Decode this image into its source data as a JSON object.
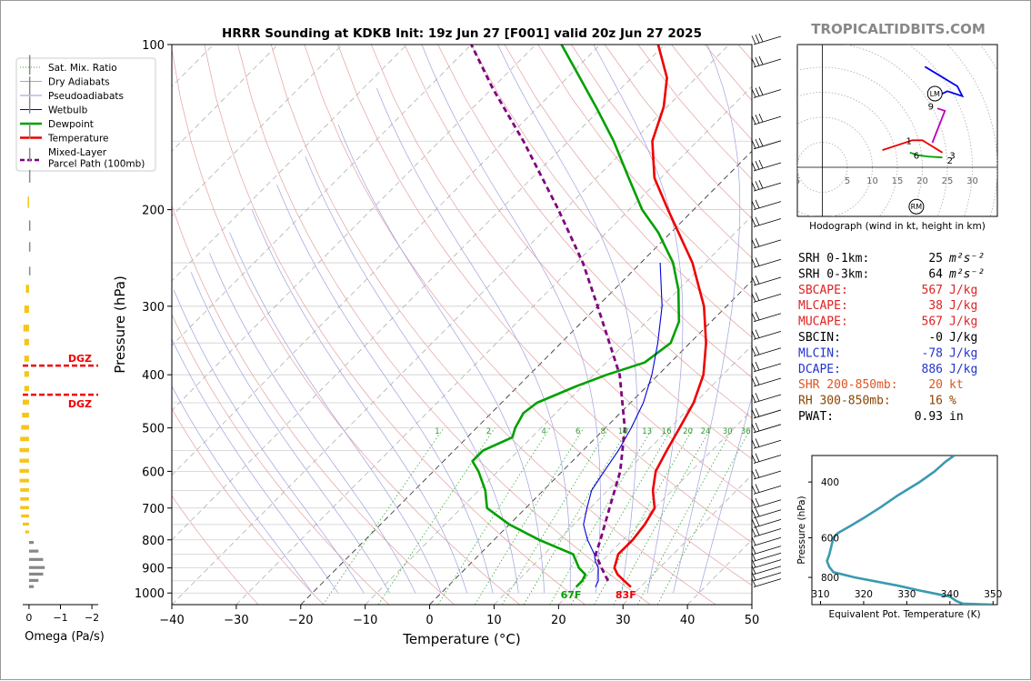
{
  "page": {
    "title": "HRRR Sounding at KDKB Init: 19z Jun 27 [F001] valid 20z Jun 27 2025",
    "watermark": "TROPICALTIDBITS.COM"
  },
  "chart_data": [
    {
      "name": "skewt",
      "type": "line",
      "xlabel": "Temperature (°C)",
      "ylabel": "Pressure (hPa)",
      "xlim": [
        -40,
        50
      ],
      "ylim": [
        1050,
        100
      ],
      "y_scale": "log",
      "xticks": [
        -40,
        -30,
        -20,
        -10,
        0,
        10,
        20,
        30,
        40,
        50
      ],
      "xtick_labels": [
        "−40",
        "−30",
        "−20",
        "−10",
        "0",
        "10",
        "20",
        "30",
        "40",
        "50"
      ],
      "yticks": [
        100,
        200,
        300,
        400,
        500,
        600,
        700,
        800,
        900,
        1000
      ],
      "grid": true,
      "legend": {
        "position": "top-left",
        "entries": [
          {
            "label": "Sat. Mix. Ratio",
            "color": "#33aa33",
            "style": "dotted"
          },
          {
            "label": "Dry Adiabats",
            "color": "#e09090",
            "style": "solid"
          },
          {
            "label": "Pseudoadiabats",
            "color": "#9090d8",
            "style": "solid"
          },
          {
            "label": "Wetbulb",
            "color": "#0000dd",
            "style": "solid"
          },
          {
            "label": "Dewpoint",
            "color": "#00a000",
            "style": "solid"
          },
          {
            "label": "Temperature",
            "color": "#ee0000",
            "style": "solid"
          },
          {
            "label": "Mixed-Layer\nParcel Path (100mb)",
            "color": "#800080",
            "style": "dashed"
          }
        ]
      },
      "mixing_ratio_labels": [
        "1",
        "2",
        "4",
        "6",
        "8",
        "10",
        "13",
        "16",
        "20",
        "24",
        "30",
        "36"
      ],
      "mixing_ratio_values": [
        1,
        2,
        4,
        6,
        8,
        10,
        13,
        16,
        20,
        24,
        30,
        36
      ],
      "surface_temp_label": "83F",
      "surface_dewpoint_label": "67F",
      "series": [
        {
          "name": "Temperature",
          "color": "#ee0000",
          "points": [
            [
              975,
              28.5
            ],
            [
              950,
              26.5
            ],
            [
              925,
              24.5
            ],
            [
              900,
              23
            ],
            [
              850,
              21.5
            ],
            [
              800,
              21.5
            ],
            [
              750,
              21
            ],
            [
              700,
              20
            ],
            [
              650,
              17
            ],
            [
              600,
              14.5
            ],
            [
              550,
              13
            ],
            [
              500,
              11.5
            ],
            [
              450,
              9.8
            ],
            [
              400,
              7
            ],
            [
              350,
              2.5
            ],
            [
              300,
              -3.5
            ],
            [
              250,
              -12
            ],
            [
              200,
              -24
            ],
            [
              175,
              -31
            ],
            [
              150,
              -37
            ],
            [
              130,
              -40.5
            ],
            [
              115,
              -44.5
            ],
            [
              100,
              -51
            ]
          ]
        },
        {
          "name": "Dewpoint",
          "color": "#00a000",
          "points": [
            [
              975,
              20
            ],
            [
              950,
              20
            ],
            [
              925,
              19.5
            ],
            [
              900,
              17.5
            ],
            [
              850,
              14.5
            ],
            [
              800,
              7
            ],
            [
              750,
              0
            ],
            [
              700,
              -6
            ],
            [
              650,
              -9
            ],
            [
              600,
              -13
            ],
            [
              575,
              -15.5
            ],
            [
              550,
              -15.5
            ],
            [
              520,
              -13
            ],
            [
              500,
              -14
            ],
            [
              470,
              -15
            ],
            [
              450,
              -14.5
            ],
            [
              420,
              -11
            ],
            [
              400,
              -8
            ],
            [
              380,
              -4
            ],
            [
              350,
              -3
            ],
            [
              320,
              -5
            ],
            [
              280,
              -10
            ],
            [
              250,
              -15
            ],
            [
              220,
              -22
            ],
            [
              200,
              -28
            ],
            [
              175,
              -35
            ],
            [
              150,
              -43
            ],
            [
              130,
              -51
            ],
            [
              115,
              -58
            ],
            [
              100,
              -66
            ]
          ]
        },
        {
          "name": "Wetbulb",
          "color": "#0000dd",
          "points": [
            [
              975,
              23
            ],
            [
              950,
              22.5
            ],
            [
              925,
              21.5
            ],
            [
              900,
              20.5
            ],
            [
              875,
              19
            ],
            [
              850,
              17.8
            ],
            [
              800,
              14.5
            ],
            [
              750,
              11.5
            ],
            [
              700,
              9.5
            ],
            [
              650,
              7.5
            ],
            [
              600,
              6.5
            ],
            [
              550,
              5.5
            ],
            [
              500,
              4
            ],
            [
              450,
              2
            ],
            [
              400,
              -1
            ],
            [
              350,
              -5
            ],
            [
              300,
              -10
            ],
            [
              250,
              -17
            ]
          ]
        },
        {
          "name": "Mixed-Layer Parcel Path (100mb)",
          "color": "#800080",
          "points": [
            [
              950,
              24
            ],
            [
              900,
              21
            ],
            [
              850,
              18
            ],
            [
              800,
              16.5
            ],
            [
              700,
              13
            ],
            [
              600,
              9
            ],
            [
              500,
              3
            ],
            [
              400,
              -6
            ],
            [
              300,
              -20
            ],
            [
              250,
              -29
            ],
            [
              200,
              -41
            ],
            [
              150,
              -57
            ],
            [
              120,
              -70
            ],
            [
              100,
              -80
            ]
          ]
        }
      ],
      "dgz_levels": [
        385,
        435
      ],
      "dgz_label": "DGZ"
    },
    {
      "name": "omega",
      "type": "bar",
      "xlabel": "Omega (Pa/s)",
      "xlim": [
        0.2,
        -2.2
      ],
      "xticks": [
        0,
        -1,
        -2
      ],
      "xtick_labels": [
        "0",
        "−1",
        "−2"
      ],
      "bars": [
        {
          "p": 110,
          "v": 0.0
        },
        {
          "p": 120,
          "v": 0.0
        },
        {
          "p": 130,
          "v": 0.0
        },
        {
          "p": 145,
          "v": 0.0
        },
        {
          "p": 160,
          "v": 0.0
        },
        {
          "p": 175,
          "v": 0.0
        },
        {
          "p": 195,
          "v": 0.02
        },
        {
          "p": 215,
          "v": 0.0
        },
        {
          "p": 235,
          "v": 0.0
        },
        {
          "p": 260,
          "v": 0.0
        },
        {
          "p": 280,
          "v": 0.1
        },
        {
          "p": 305,
          "v": 0.15
        },
        {
          "p": 330,
          "v": 0.18
        },
        {
          "p": 350,
          "v": 0.15
        },
        {
          "p": 375,
          "v": 0.15
        },
        {
          "p": 400,
          "v": 0.15
        },
        {
          "p": 425,
          "v": 0.15
        },
        {
          "p": 450,
          "v": 0.2
        },
        {
          "p": 475,
          "v": 0.22
        },
        {
          "p": 500,
          "v": 0.25
        },
        {
          "p": 525,
          "v": 0.28
        },
        {
          "p": 550,
          "v": 0.3
        },
        {
          "p": 575,
          "v": 0.3
        },
        {
          "p": 600,
          "v": 0.3
        },
        {
          "p": 625,
          "v": 0.3
        },
        {
          "p": 650,
          "v": 0.28
        },
        {
          "p": 675,
          "v": 0.28
        },
        {
          "p": 700,
          "v": 0.28
        },
        {
          "p": 725,
          "v": 0.25
        },
        {
          "p": 750,
          "v": 0.2
        },
        {
          "p": 775,
          "v": 0.12
        },
        {
          "p": 810,
          "v": -0.15
        },
        {
          "p": 840,
          "v": -0.3
        },
        {
          "p": 870,
          "v": -0.45
        },
        {
          "p": 900,
          "v": -0.5
        },
        {
          "p": 925,
          "v": -0.45
        },
        {
          "p": 950,
          "v": -0.3
        },
        {
          "p": 975,
          "v": -0.15
        }
      ]
    },
    {
      "name": "hodograph",
      "type": "line",
      "xlabel": "Hodograph (wind in kt, height in km)",
      "xlim": [
        -5,
        35
      ],
      "ylim": [
        -10,
        25
      ],
      "xtick_labels": [
        "5",
        "5",
        "10",
        "15",
        "20",
        "25",
        "30"
      ],
      "xtick_values": [
        -5,
        5,
        10,
        15,
        20,
        25,
        30
      ],
      "rings": [
        5,
        10,
        15,
        20,
        25,
        30,
        35,
        40
      ],
      "segments": [
        {
          "color": "#ee0000",
          "points": [
            [
              12,
              3.5
            ],
            [
              18,
              5.5
            ],
            [
              20,
              5.5
            ],
            [
              24,
              3
            ]
          ]
        },
        {
          "color": "#00a000",
          "points": [
            [
              17.5,
              3
            ],
            [
              19,
              2.5
            ],
            [
              21,
              2.2
            ],
            [
              24,
              2
            ]
          ]
        },
        {
          "color": "#bb00bb",
          "points": [
            [
              22,
              5
            ],
            [
              24.5,
              11.5
            ],
            [
              23,
              12
            ]
          ]
        },
        {
          "color": "#0000ee",
          "points": [
            [
              20.5,
              20.5
            ],
            [
              27,
              16.5
            ],
            [
              28,
              14.5
            ],
            [
              25,
              15.5
            ],
            [
              23,
              14.5
            ]
          ]
        }
      ],
      "height_labels": [
        {
          "text": "1",
          "x": 17.3,
          "y": 5.5
        },
        {
          "text": "6",
          "x": 18.8,
          "y": 2.5
        },
        {
          "text": "3",
          "x": 26,
          "y": 2.5
        },
        {
          "text": "2",
          "x": 25.5,
          "y": 1.5
        },
        {
          "text": "9",
          "x": 21.7,
          "y": 12.5
        }
      ],
      "markers": [
        {
          "text": "LM",
          "x": 22.5,
          "y": 15
        },
        {
          "text": "RM",
          "x": 18.8,
          "y": -8
        }
      ]
    },
    {
      "name": "theta_e",
      "type": "line",
      "xlabel": "Equivalent Pot. Temperature (K)",
      "ylabel": "Pressure (hPa)",
      "xlim": [
        308,
        351
      ],
      "ylim": [
        975,
        330
      ],
      "xticks": [
        310,
        320,
        330,
        340,
        350
      ],
      "yticks": [
        400,
        600,
        800
      ],
      "color": "#3a9ab0",
      "points": [
        [
          975,
          350
        ],
        [
          968,
          343
        ],
        [
          950,
          341.5
        ],
        [
          920,
          340
        ],
        [
          880,
          333
        ],
        [
          850,
          328
        ],
        [
          800,
          318
        ],
        [
          770,
          313
        ],
        [
          740,
          312
        ],
        [
          710,
          311.5
        ],
        [
          680,
          312
        ],
        [
          640,
          312.5
        ],
        [
          600,
          313
        ],
        [
          580,
          314
        ],
        [
          550,
          317
        ],
        [
          520,
          320
        ],
        [
          480,
          324
        ],
        [
          440,
          328
        ],
        [
          400,
          333
        ],
        [
          370,
          336.5
        ],
        [
          345,
          339
        ],
        [
          330,
          341
        ]
      ]
    }
  ],
  "indices": [
    {
      "label": "SRH 0-1km:",
      "value": "25",
      "unit": "m²s⁻²",
      "color": "#000000"
    },
    {
      "label": "SRH 0-3km:",
      "value": "64",
      "unit": "m²s⁻²",
      "color": "#000000"
    },
    {
      "label": "SBCAPE:",
      "value": "567",
      "unit": "J/kg",
      "color": "#dd2222"
    },
    {
      "label": "MLCAPE:",
      "value": "38",
      "unit": "J/kg",
      "color": "#dd2222"
    },
    {
      "label": "MUCAPE:",
      "value": "567",
      "unit": "J/kg",
      "color": "#dd2222"
    },
    {
      "label": "SBCIN:",
      "value": "-0",
      "unit": "J/kg",
      "color": "#000000"
    },
    {
      "label": "MLCIN:",
      "value": "-78",
      "unit": "J/kg",
      "color": "#2233cc"
    },
    {
      "label": "DCAPE:",
      "value": "886",
      "unit": "J/kg",
      "color": "#2233cc"
    },
    {
      "label": "SHR 200-850mb:",
      "value": "20",
      "unit": "kt",
      "color": "#dd5522"
    },
    {
      "label": "RH 300-850mb:",
      "value": "16",
      "unit": "%",
      "color": "#884400"
    },
    {
      "label": "PWAT:",
      "value": "0.93",
      "unit": "in",
      "color": "#000000"
    }
  ]
}
